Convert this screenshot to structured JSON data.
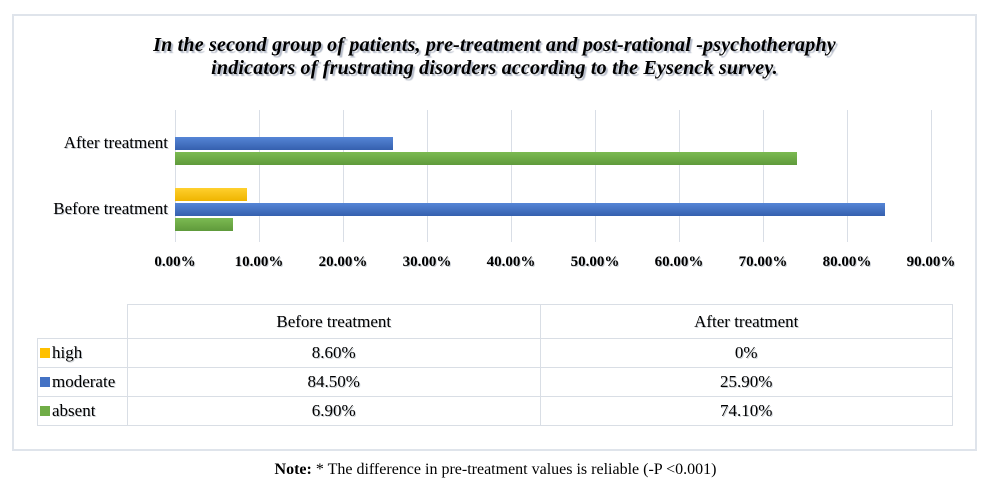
{
  "title": {
    "line1": "In the second group of patients, pre-treatment and post-rational -psychotheraphy",
    "line2": "indicators of frustrating disorders according to the Eysenck survey."
  },
  "chart_data": {
    "type": "bar",
    "orientation": "horizontal",
    "categories": [
      "After treatment",
      "Before treatment"
    ],
    "series": [
      {
        "name": "high",
        "color": "#FFC000",
        "color_light": "#FFD02E",
        "color_dark": "#EFB400",
        "values": [
          0,
          8.6
        ]
      },
      {
        "name": "moderate",
        "color": "#4472C4",
        "color_light": "#5585D6",
        "color_dark": "#3560AE",
        "values": [
          25.9,
          84.5
        ]
      },
      {
        "name": "absent",
        "color": "#70AD47",
        "color_light": "#7CBA52",
        "color_dark": "#5F9A3B",
        "values": [
          74.1,
          6.9
        ]
      }
    ],
    "x_axis": {
      "ticks": [
        "0.00%",
        "10.00%",
        "20.00%",
        "30.00%",
        "40.00%",
        "50.00%",
        "60.00%",
        "70.00%",
        "80.00%",
        "90.00%"
      ],
      "min": 0,
      "max": 90,
      "step": 10,
      "unit": "%"
    },
    "gridlines": true,
    "legend_position": "table-left-column"
  },
  "table": {
    "columns": [
      "",
      "Before treatment",
      "After treatment"
    ],
    "rows": [
      {
        "label": "high",
        "marker_color": "#FFC000",
        "before": "8.60%",
        "after": "0%"
      },
      {
        "label": "moderate",
        "marker_color": "#4472C4",
        "before": "84.50%",
        "after": "25.90%"
      },
      {
        "label": "absent",
        "marker_color": "#70AD47",
        "before": "6.90%",
        "after": "74.10%"
      }
    ]
  },
  "note": {
    "label": "Note:",
    "text": "* The difference in pre-treatment values is reliable (-P <0.001)"
  }
}
